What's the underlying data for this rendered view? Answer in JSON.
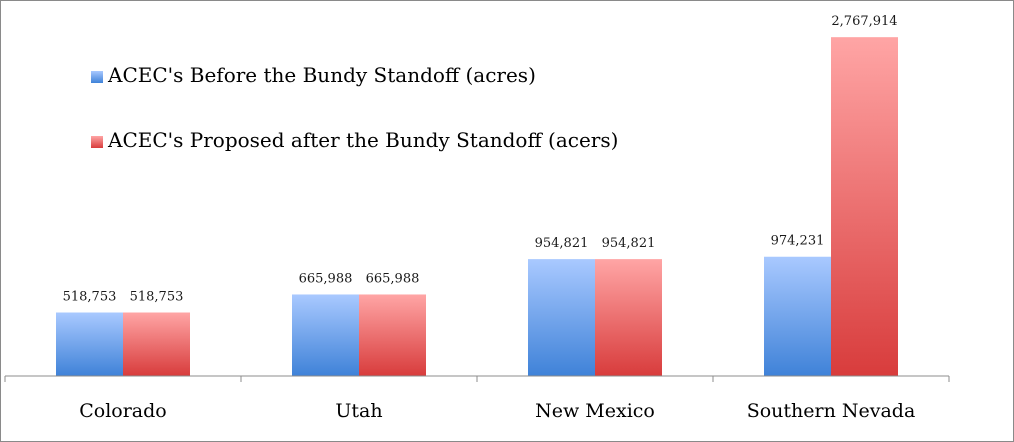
{
  "chart_data": {
    "type": "bar",
    "categories": [
      "Colorado",
      "Utah",
      "New Mexico",
      "Southern Nevada"
    ],
    "series": [
      {
        "name": "ACEC's Before the Bundy Standoff (acres)",
        "values": [
          518753,
          665988,
          954821,
          974231
        ],
        "value_labels": [
          "518,753",
          "665,988",
          "954,821",
          "974,231"
        ],
        "color_top": "#a9c9ff",
        "color_bottom": "#3f82d8"
      },
      {
        "name": "ACEC's Proposed after the Bundy Standoff (acers)",
        "values": [
          518753,
          665988,
          954821,
          2767914
        ],
        "value_labels": [
          "518,753",
          "665,988",
          "954,821",
          "2,767,914"
        ],
        "color_top": "#ffa5a5",
        "color_bottom": "#d83c3c"
      }
    ],
    "ylim": [
      0,
      2900000
    ],
    "grid": false,
    "legend_position": "top-left"
  }
}
